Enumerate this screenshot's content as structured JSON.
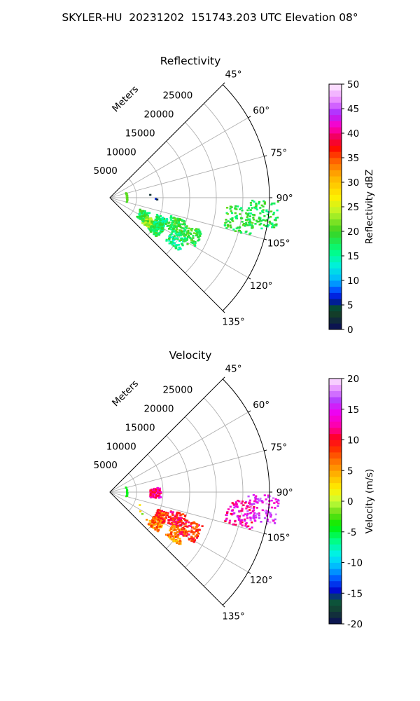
{
  "title": "SKYLER-HU  20231202  151743.203 UTC Elevation 08°",
  "chart_data": [
    {
      "type": "polar-sector",
      "title": "Reflectivity",
      "radial_label": "Meters",
      "radial_ticks": [
        5000,
        10000,
        15000,
        20000,
        25000
      ],
      "radial_tick_labels": [
        "5000",
        "10000",
        "15000",
        "20000",
        "25000"
      ],
      "r_max": 30000,
      "angle_range_deg": [
        45,
        135
      ],
      "angle_ticks": [
        45,
        60,
        75,
        90,
        105,
        120,
        135
      ],
      "angle_tick_labels": [
        "45°",
        "60°",
        "75°",
        "90°",
        "105°",
        "120°",
        "135°"
      ],
      "grid": true,
      "colorbar": {
        "label": "Reflectivity dBZ",
        "range": [
          0,
          50
        ],
        "ticks": [
          "0",
          "5",
          "10",
          "15",
          "20",
          "25",
          "30",
          "35",
          "40",
          "45",
          "50"
        ]
      },
      "echoes": [
        {
          "azimuth": 118,
          "range": 6800,
          "value": 18
        },
        {
          "azimuth": 122,
          "range": 8500,
          "value": 23
        },
        {
          "azimuth": 124,
          "range": 10300,
          "value": 18
        },
        {
          "azimuth": 115,
          "range": 10300,
          "value": 17
        },
        {
          "azimuth": 112,
          "range": 13200,
          "value": 19
        },
        {
          "azimuth": 122,
          "range": 14600,
          "value": 16
        },
        {
          "azimuth": 115,
          "range": 16500,
          "value": 19
        },
        {
          "azimuth": 99,
          "range": 24600,
          "value": 19
        },
        {
          "azimuth": 96,
          "range": 28700,
          "value": 18
        },
        {
          "azimuth": 90,
          "range": 8400,
          "value": 4
        }
      ],
      "arc_echo": {
        "range": 3100,
        "azimuth_span": [
          70,
          103
        ],
        "value": 21
      }
    },
    {
      "type": "polar-sector",
      "title": "Velocity",
      "radial_label": "Meters",
      "radial_ticks": [
        5000,
        10000,
        15000,
        20000,
        25000
      ],
      "radial_tick_labels": [
        "5000",
        "10000",
        "15000",
        "20000",
        "25000"
      ],
      "r_max": 30000,
      "angle_range_deg": [
        45,
        135
      ],
      "angle_ticks": [
        45,
        60,
        75,
        90,
        105,
        120,
        135
      ],
      "angle_tick_labels": [
        "45°",
        "60°",
        "75°",
        "90°",
        "105°",
        "120°",
        "135°"
      ],
      "grid": true,
      "colorbar": {
        "label": "Velocity (m/s)",
        "range": [
          -20,
          20
        ],
        "ticks": [
          "-20",
          "-15",
          "-10",
          "-5",
          "0",
          "5",
          "10",
          "15",
          "20"
        ]
      },
      "echoes": [
        {
          "azimuth": 118,
          "range": 6800,
          "value": 1
        },
        {
          "azimuth": 122,
          "range": 8500,
          "value": 3
        },
        {
          "azimuth": 124,
          "range": 10300,
          "value": 6
        },
        {
          "azimuth": 115,
          "range": 10300,
          "value": 8
        },
        {
          "azimuth": 112,
          "range": 13200,
          "value": 10
        },
        {
          "azimuth": 122,
          "range": 14600,
          "value": 6
        },
        {
          "azimuth": 115,
          "range": 16500,
          "value": 9
        },
        {
          "azimuth": 99,
          "range": 24600,
          "value": 13
        },
        {
          "azimuth": 96,
          "range": 28700,
          "value": 16
        },
        {
          "azimuth": 90,
          "range": 8400,
          "value": 12
        }
      ],
      "arc_echo": {
        "range": 3100,
        "azimuth_span": [
          70,
          103
        ],
        "value": -4
      }
    }
  ]
}
